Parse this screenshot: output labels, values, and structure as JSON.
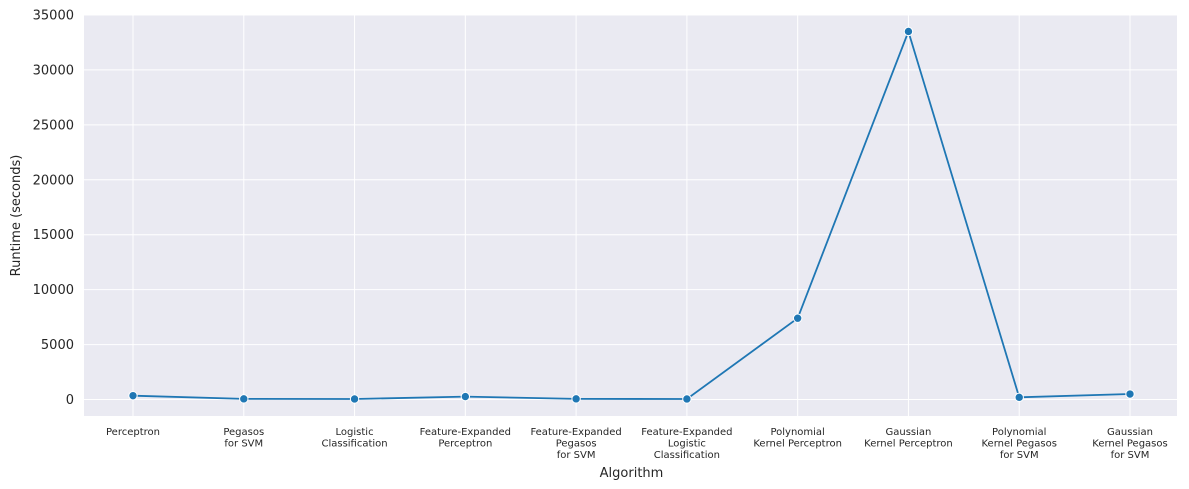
{
  "chart_data": {
    "type": "line",
    "title": "",
    "xlabel": "Algorithm",
    "ylabel": "Runtime (seconds)",
    "categories": [
      [
        "Perceptron"
      ],
      [
        "Pegasos",
        "for SVM"
      ],
      [
        "Logistic",
        "Classification"
      ],
      [
        "Feature-Expanded",
        "Perceptron"
      ],
      [
        "Feature-Expanded",
        "Pegasos",
        "for SVM"
      ],
      [
        "Feature-Expanded",
        "Logistic",
        "Classification"
      ],
      [
        "Polynomial",
        "Kernel Perceptron"
      ],
      [
        "Gaussian",
        "Kernel Perceptron"
      ],
      [
        "Polynomial",
        "Kernel Pegasos",
        "for SVM"
      ],
      [
        "Gaussian",
        "Kernel Pegasos",
        "for SVM"
      ]
    ],
    "values": [
      350,
      60,
      50,
      270,
      60,
      50,
      7400,
      33500,
      200,
      500
    ],
    "yticks": [
      0,
      5000,
      10000,
      15000,
      20000,
      25000,
      30000,
      35000
    ],
    "ylim": [
      -1500,
      35000
    ],
    "grid": true,
    "colors": {
      "background": "#eaeaf2",
      "grid": "#ffffff",
      "line": "#1f77b4",
      "marker_edge": "#ffffff"
    }
  }
}
